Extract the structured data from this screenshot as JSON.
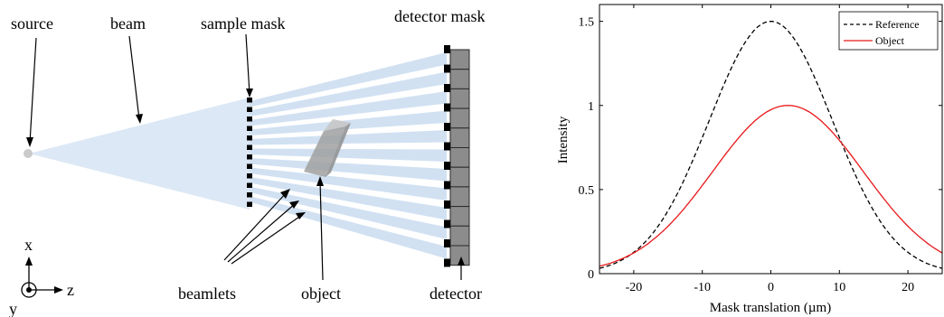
{
  "diagram": {
    "labels": {
      "source": "source",
      "beam": "beam",
      "sample_mask": "sample mask",
      "detector_mask": "detector mask",
      "beamlets": "beamlets",
      "object": "object",
      "detector": "detector"
    },
    "axes": {
      "x": "x",
      "z": "z",
      "y": "y"
    },
    "colors": {
      "beam": "#dce8f5",
      "beamlet": "#c9dcf0",
      "mask": "#000000",
      "detector": "#8c8c8c",
      "object": "#a9a9a9"
    }
  },
  "chart_data": {
    "type": "line",
    "xlabel": "Mask translation (µm)",
    "ylabel": "Intensity",
    "xlim": [
      -25,
      25
    ],
    "ylim": [
      0,
      1.6
    ],
    "xticks": [
      -20,
      -10,
      0,
      10,
      20
    ],
    "yticks": [
      0,
      0.5,
      1,
      1.5
    ],
    "legend_position": "top-right",
    "series": [
      {
        "name": "Reference",
        "color": "#000000",
        "style": "dashed",
        "mu": 0,
        "sigma": 9,
        "amplitude": 1.5
      },
      {
        "name": "Object",
        "color": "#e8191b",
        "style": "solid",
        "mu": 2.5,
        "sigma": 11,
        "amplitude": 1.0
      }
    ]
  }
}
